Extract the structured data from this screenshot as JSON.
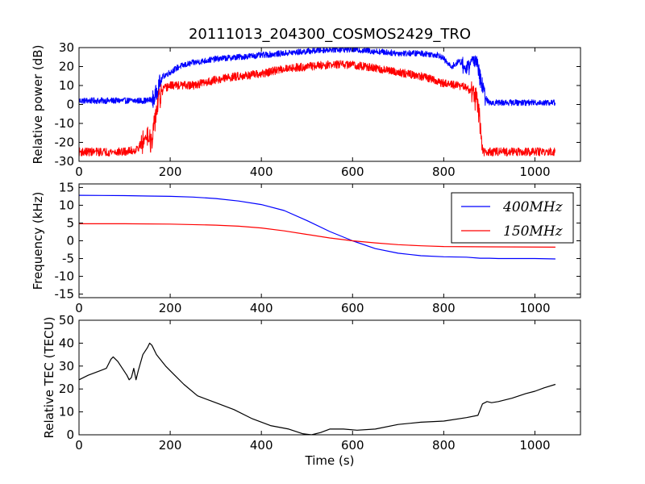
{
  "figure": {
    "title": "20111013_204300_COSMOS2429_TRO",
    "xlabel": "Time (s)"
  },
  "chart_data": [
    {
      "type": "line",
      "ylabel": "Relative power (dB)",
      "xlim": [
        0,
        1100
      ],
      "ylim": [
        -30,
        30
      ],
      "xticks": [
        0,
        200,
        400,
        600,
        800,
        1000
      ],
      "yticks": [
        -30,
        -20,
        -10,
        0,
        10,
        20,
        30
      ],
      "grid": false,
      "series": [
        {
          "color": "#0000ff",
          "noise_db": 1.6,
          "points": [
            [
              0,
              2
            ],
            [
              100,
              2
            ],
            [
              150,
              2
            ],
            [
              165,
              3
            ],
            [
              175,
              10
            ],
            [
              185,
              15
            ],
            [
              200,
              17
            ],
            [
              220,
              20
            ],
            [
              250,
              22
            ],
            [
              300,
              24
            ],
            [
              350,
              25
            ],
            [
              400,
              26
            ],
            [
              450,
              27
            ],
            [
              500,
              28
            ],
            [
              550,
              29
            ],
            [
              600,
              29
            ],
            [
              650,
              28
            ],
            [
              700,
              27
            ],
            [
              750,
              27
            ],
            [
              790,
              26
            ],
            [
              800,
              24
            ],
            [
              815,
              20
            ],
            [
              825,
              21
            ],
            [
              835,
              23
            ],
            [
              845,
              20
            ],
            [
              850,
              17
            ],
            [
              860,
              23
            ],
            [
              865,
              25
            ],
            [
              872,
              22
            ],
            [
              880,
              14
            ],
            [
              888,
              6
            ],
            [
              895,
              2
            ],
            [
              900,
              1
            ],
            [
              1000,
              1
            ],
            [
              1045,
              1
            ]
          ]
        },
        {
          "color": "#ff0000",
          "noise_db": 2.2,
          "points": [
            [
              0,
              -25
            ],
            [
              100,
              -25
            ],
            [
              125,
              -24
            ],
            [
              140,
              -20
            ],
            [
              150,
              -15
            ],
            [
              160,
              -22
            ],
            [
              168,
              -5
            ],
            [
              175,
              2
            ],
            [
              185,
              8
            ],
            [
              200,
              10
            ],
            [
              250,
              10
            ],
            [
              300,
              13
            ],
            [
              350,
              15
            ],
            [
              400,
              16
            ],
            [
              450,
              19
            ],
            [
              500,
              20
            ],
            [
              550,
              21
            ],
            [
              600,
              21
            ],
            [
              650,
              19
            ],
            [
              700,
              17
            ],
            [
              750,
              15
            ],
            [
              800,
              11
            ],
            [
              830,
              10
            ],
            [
              850,
              9
            ],
            [
              865,
              5
            ],
            [
              875,
              0
            ],
            [
              880,
              -10
            ],
            [
              886,
              -25
            ],
            [
              1000,
              -25
            ],
            [
              1045,
              -25
            ]
          ]
        }
      ]
    },
    {
      "type": "line",
      "ylabel": "Frequency (kHz)",
      "xlim": [
        0,
        1100
      ],
      "ylim": [
        -16,
        16
      ],
      "xticks": [
        0,
        200,
        400,
        600,
        800,
        1000
      ],
      "yticks": [
        -15,
        -10,
        -5,
        0,
        5,
        10,
        15
      ],
      "grid": false,
      "legend_position": "upper-right",
      "series": [
        {
          "name": "400MHz",
          "color": "#0000ff",
          "points": [
            [
              0,
              12.8
            ],
            [
              100,
              12.7
            ],
            [
              150,
              12.6
            ],
            [
              200,
              12.5
            ],
            [
              250,
              12.3
            ],
            [
              300,
              11.9
            ],
            [
              350,
              11.2
            ],
            [
              400,
              10.2
            ],
            [
              450,
              8.5
            ],
            [
              500,
              5.7
            ],
            [
              550,
              2.6
            ],
            [
              600,
              0.0
            ],
            [
              650,
              -2.2
            ],
            [
              700,
              -3.5
            ],
            [
              750,
              -4.2
            ],
            [
              800,
              -4.5
            ],
            [
              850,
              -4.6
            ],
            [
              880,
              -4.9
            ],
            [
              900,
              -4.9
            ],
            [
              920,
              -5.0
            ],
            [
              1000,
              -5.0
            ],
            [
              1045,
              -5.1
            ]
          ]
        },
        {
          "name": "150MHz",
          "color": "#ff0000",
          "points": [
            [
              0,
              4.8
            ],
            [
              100,
              4.8
            ],
            [
              200,
              4.7
            ],
            [
              300,
              4.4
            ],
            [
              350,
              4.1
            ],
            [
              400,
              3.6
            ],
            [
              450,
              2.8
            ],
            [
              500,
              1.8
            ],
            [
              550,
              0.8
            ],
            [
              600,
              0.0
            ],
            [
              650,
              -0.6
            ],
            [
              700,
              -1.1
            ],
            [
              750,
              -1.4
            ],
            [
              800,
              -1.6
            ],
            [
              900,
              -1.7
            ],
            [
              1045,
              -1.8
            ]
          ]
        }
      ]
    },
    {
      "type": "line",
      "ylabel": "Relative TEC (TECU)",
      "xlim": [
        0,
        1100
      ],
      "ylim": [
        0,
        50
      ],
      "xticks": [
        0,
        200,
        400,
        600,
        800,
        1000
      ],
      "yticks": [
        0,
        10,
        20,
        30,
        40,
        50
      ],
      "grid": false,
      "series": [
        {
          "color": "#000000",
          "points": [
            [
              0,
              24
            ],
            [
              20,
              26
            ],
            [
              40,
              27.5
            ],
            [
              60,
              29
            ],
            [
              70,
              33
            ],
            [
              75,
              34
            ],
            [
              85,
              32
            ],
            [
              95,
              29
            ],
            [
              105,
              26
            ],
            [
              110,
              24
            ],
            [
              115,
              25
            ],
            [
              120,
              29
            ],
            [
              125,
              24
            ],
            [
              130,
              28
            ],
            [
              140,
              35
            ],
            [
              150,
              38
            ],
            [
              155,
              40
            ],
            [
              160,
              39
            ],
            [
              170,
              35
            ],
            [
              190,
              30
            ],
            [
              210,
              26
            ],
            [
              230,
              22
            ],
            [
              260,
              17
            ],
            [
              300,
              14
            ],
            [
              340,
              11
            ],
            [
              380,
              7
            ],
            [
              420,
              4
            ],
            [
              460,
              2.5
            ],
            [
              490,
              0.5
            ],
            [
              510,
              0
            ],
            [
              530,
              1
            ],
            [
              550,
              2.5
            ],
            [
              580,
              2.5
            ],
            [
              610,
              2
            ],
            [
              650,
              2.5
            ],
            [
              700,
              4.5
            ],
            [
              750,
              5.5
            ],
            [
              800,
              6
            ],
            [
              850,
              7.5
            ],
            [
              875,
              8.5
            ],
            [
              880,
              11
            ],
            [
              885,
              13.5
            ],
            [
              895,
              14.5
            ],
            [
              905,
              14
            ],
            [
              920,
              14.5
            ],
            [
              950,
              16
            ],
            [
              980,
              18
            ],
            [
              1000,
              19
            ],
            [
              1020,
              20.5
            ],
            [
              1045,
              22
            ]
          ]
        }
      ]
    }
  ]
}
